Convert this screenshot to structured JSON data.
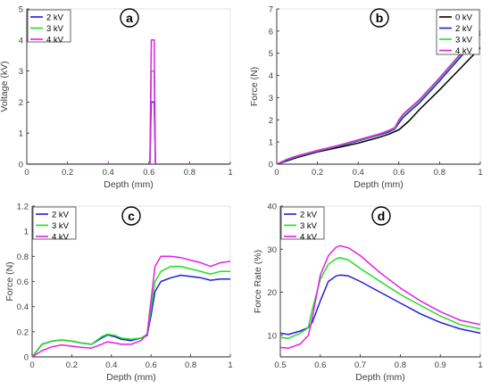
{
  "chart_data": [
    {
      "type": "line",
      "panel": "a",
      "xlabel": "Depth (mm)",
      "ylabel": "Voltage (kV)",
      "xlim": [
        0,
        1
      ],
      "ylim": [
        0,
        5
      ],
      "xticks": [
        "0",
        "0.2",
        "0.4",
        "0.6",
        "0.8",
        "1"
      ],
      "yticks": [
        "0",
        "1",
        "2",
        "3",
        "4",
        "5"
      ],
      "legend_position": "top-left",
      "grid": false,
      "series": [
        {
          "name": "2 kV",
          "color": "#1f1fd6",
          "x": [
            0,
            0.605,
            0.612,
            0.618,
            0.626,
            0.632,
            1
          ],
          "y": [
            0,
            0,
            2,
            2,
            2,
            0,
            0
          ]
        },
        {
          "name": "3 kV",
          "color": "#22dd22",
          "x": [
            0,
            0.605,
            0.612,
            0.618,
            0.626,
            0.632,
            1
          ],
          "y": [
            0,
            0,
            3,
            3,
            3,
            0,
            0
          ]
        },
        {
          "name": "4 kV",
          "color": "#e61ee6",
          "x": [
            0,
            0.605,
            0.612,
            0.618,
            0.626,
            0.632,
            1
          ],
          "y": [
            0,
            0,
            4,
            4,
            4,
            0,
            0
          ]
        }
      ]
    },
    {
      "type": "line",
      "panel": "b",
      "xlabel": "Depth (mm)",
      "ylabel": "Force (N)",
      "xlim": [
        0,
        1
      ],
      "ylim": [
        0,
        7
      ],
      "xticks": [
        "0",
        "0.2",
        "0.4",
        "0.6",
        "0.8",
        "1"
      ],
      "yticks": [
        "0",
        "1",
        "2",
        "3",
        "4",
        "5",
        "6",
        "7"
      ],
      "legend_position": "top-right",
      "grid": false,
      "series": [
        {
          "name": "0 kV",
          "color": "#000000",
          "x": [
            0,
            0.05,
            0.1,
            0.2,
            0.3,
            0.4,
            0.5,
            0.55,
            0.6,
            0.65,
            0.7,
            0.8,
            0.9,
            1.0
          ],
          "y": [
            0,
            0.15,
            0.3,
            0.55,
            0.75,
            0.95,
            1.2,
            1.35,
            1.55,
            1.95,
            2.45,
            3.35,
            4.3,
            5.25
          ]
        },
        {
          "name": "2 kV",
          "color": "#1f1fd6",
          "x": [
            0,
            0.05,
            0.1,
            0.2,
            0.3,
            0.4,
            0.5,
            0.55,
            0.58,
            0.6,
            0.62,
            0.65,
            0.7,
            0.8,
            0.9,
            1.0
          ],
          "y": [
            0,
            0.18,
            0.33,
            0.58,
            0.8,
            1.05,
            1.3,
            1.45,
            1.58,
            1.85,
            2.1,
            2.35,
            2.75,
            3.75,
            4.8,
            5.85
          ]
        },
        {
          "name": "3 kV",
          "color": "#22dd22",
          "x": [
            0,
            0.05,
            0.1,
            0.2,
            0.3,
            0.4,
            0.5,
            0.55,
            0.58,
            0.6,
            0.62,
            0.65,
            0.7,
            0.8,
            0.9,
            1.0
          ],
          "y": [
            0,
            0.2,
            0.36,
            0.6,
            0.82,
            1.08,
            1.33,
            1.5,
            1.62,
            1.95,
            2.2,
            2.45,
            2.85,
            3.85,
            4.9,
            5.95
          ]
        },
        {
          "name": "4 kV",
          "color": "#e61ee6",
          "x": [
            0,
            0.05,
            0.1,
            0.2,
            0.3,
            0.4,
            0.5,
            0.55,
            0.58,
            0.6,
            0.62,
            0.65,
            0.7,
            0.8,
            0.9,
            1.0
          ],
          "y": [
            0,
            0.22,
            0.38,
            0.62,
            0.84,
            1.1,
            1.35,
            1.52,
            1.65,
            2.0,
            2.25,
            2.5,
            2.9,
            3.9,
            4.95,
            6.0
          ]
        }
      ]
    },
    {
      "type": "line",
      "panel": "c",
      "xlabel": "Depth (mm)",
      "ylabel": "Force (N)",
      "xlim": [
        0,
        1
      ],
      "ylim": [
        0,
        1.2
      ],
      "xticks": [
        "0",
        "0.2",
        "0.4",
        "0.6",
        "0.8",
        "1"
      ],
      "yticks": [
        "0",
        "0.2",
        "0.4",
        "0.6",
        "0.8",
        "1",
        "1.2"
      ],
      "legend_position": "top-left",
      "grid": false,
      "series": [
        {
          "name": "2 kV",
          "color": "#1f1fd6",
          "x": [
            0,
            0.05,
            0.1,
            0.15,
            0.2,
            0.25,
            0.3,
            0.35,
            0.38,
            0.42,
            0.45,
            0.5,
            0.55,
            0.58,
            0.6,
            0.62,
            0.65,
            0.7,
            0.75,
            0.8,
            0.85,
            0.9,
            0.95,
            1.0
          ],
          "y": [
            0,
            0.1,
            0.125,
            0.135,
            0.125,
            0.11,
            0.1,
            0.15,
            0.175,
            0.16,
            0.14,
            0.13,
            0.15,
            0.17,
            0.33,
            0.52,
            0.6,
            0.63,
            0.65,
            0.64,
            0.63,
            0.61,
            0.62,
            0.62
          ]
        },
        {
          "name": "3 kV",
          "color": "#22dd22",
          "x": [
            0,
            0.05,
            0.1,
            0.15,
            0.2,
            0.25,
            0.3,
            0.35,
            0.38,
            0.42,
            0.45,
            0.5,
            0.55,
            0.58,
            0.6,
            0.62,
            0.65,
            0.7,
            0.75,
            0.8,
            0.85,
            0.9,
            0.95,
            1.0
          ],
          "y": [
            0,
            0.1,
            0.125,
            0.135,
            0.125,
            0.11,
            0.1,
            0.16,
            0.18,
            0.17,
            0.15,
            0.14,
            0.15,
            0.18,
            0.38,
            0.6,
            0.68,
            0.72,
            0.72,
            0.7,
            0.68,
            0.66,
            0.68,
            0.68
          ]
        },
        {
          "name": "4 kV",
          "color": "#e61ee6",
          "x": [
            0,
            0.05,
            0.1,
            0.15,
            0.2,
            0.25,
            0.3,
            0.35,
            0.38,
            0.42,
            0.45,
            0.5,
            0.55,
            0.58,
            0.6,
            0.62,
            0.65,
            0.7,
            0.75,
            0.8,
            0.85,
            0.9,
            0.95,
            1.0
          ],
          "y": [
            0,
            0.05,
            0.08,
            0.095,
            0.085,
            0.075,
            0.07,
            0.1,
            0.12,
            0.11,
            0.1,
            0.1,
            0.13,
            0.18,
            0.45,
            0.72,
            0.8,
            0.8,
            0.79,
            0.77,
            0.75,
            0.72,
            0.75,
            0.76
          ]
        }
      ]
    },
    {
      "type": "line",
      "panel": "d",
      "xlabel": "Depth (mm)",
      "ylabel": "Force Rate (%)",
      "xlim": [
        0.5,
        1
      ],
      "ylim": [
        5,
        40
      ],
      "xticks": [
        "0.5",
        "0.6",
        "0.7",
        "0.8",
        "0.9",
        "1"
      ],
      "yticks": [
        "10",
        "20",
        "30",
        "40"
      ],
      "legend_position": "top-left",
      "grid": false,
      "series": [
        {
          "name": "2 kV",
          "color": "#1f1fd6",
          "x": [
            0.5,
            0.52,
            0.55,
            0.57,
            0.58,
            0.6,
            0.62,
            0.64,
            0.65,
            0.67,
            0.7,
            0.75,
            0.8,
            0.85,
            0.9,
            0.95,
            1.0
          ],
          "y": [
            10.5,
            10.2,
            11,
            11.8,
            13,
            18,
            22.5,
            23.8,
            24,
            23.8,
            22.5,
            20,
            17.5,
            15,
            13,
            11.5,
            10.5
          ]
        },
        {
          "name": "3 kV",
          "color": "#22dd22",
          "x": [
            0.5,
            0.52,
            0.55,
            0.57,
            0.58,
            0.6,
            0.62,
            0.64,
            0.65,
            0.67,
            0.7,
            0.75,
            0.8,
            0.85,
            0.9,
            0.95,
            1.0
          ],
          "y": [
            9.5,
            9.3,
            10.5,
            11.8,
            16,
            23,
            26.5,
            27.8,
            28,
            27.5,
            25.5,
            22.5,
            19.5,
            17,
            14.5,
            12.5,
            11.5
          ]
        },
        {
          "name": "4 kV",
          "color": "#e61ee6",
          "x": [
            0.5,
            0.52,
            0.55,
            0.57,
            0.58,
            0.6,
            0.62,
            0.64,
            0.65,
            0.67,
            0.7,
            0.75,
            0.8,
            0.85,
            0.9,
            0.95,
            1.0
          ],
          "y": [
            7.2,
            7.0,
            8.0,
            10,
            14,
            24,
            28.5,
            30.5,
            30.8,
            30.3,
            28.5,
            24.5,
            21,
            18,
            15.5,
            13.5,
            12.5
          ]
        }
      ]
    }
  ]
}
